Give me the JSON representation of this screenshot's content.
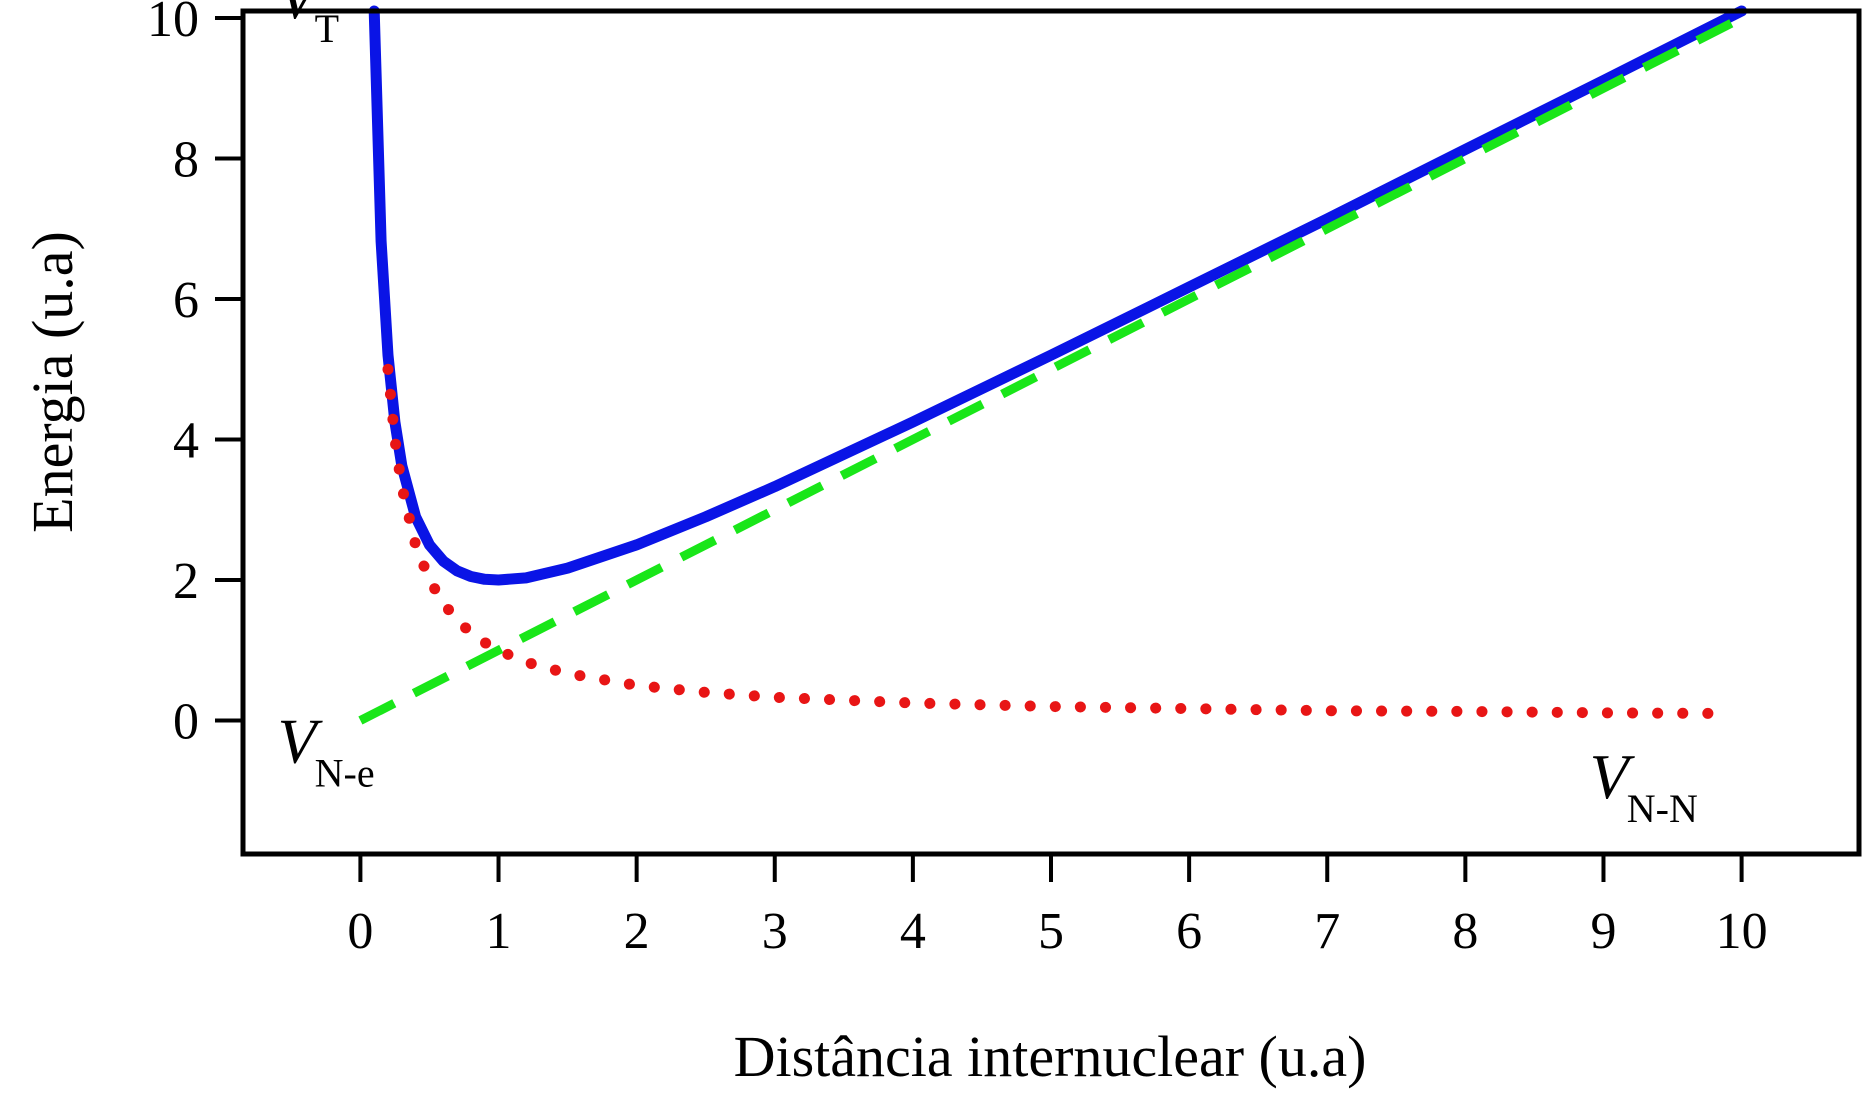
{
  "chart_data": {
    "type": "line",
    "title": "",
    "xlabel": "Distância internuclear (u.a)",
    "ylabel": "Energia (u.a)",
    "xlim": [
      -0.85,
      10.85
    ],
    "ylim": [
      -1.9,
      10.1
    ],
    "xticks": [
      0,
      1,
      2,
      3,
      4,
      5,
      6,
      7,
      8,
      9,
      10
    ],
    "yticks": [
      0,
      2,
      4,
      6,
      8,
      10
    ],
    "x_tick_labels": [
      "0",
      "1",
      "2",
      "3",
      "4",
      "5",
      "6",
      "7",
      "8",
      "9",
      "10"
    ],
    "y_tick_labels": [
      "0",
      "2",
      "4",
      "6",
      "8",
      "10"
    ],
    "grid": false,
    "legend": "none",
    "series": [
      {
        "style": "solid",
        "color": "#0a14e6",
        "x": [
          0.1,
          0.15,
          0.2,
          0.25,
          0.3,
          0.4,
          0.5,
          0.6,
          0.7,
          0.8,
          0.9,
          1.0,
          1.2,
          1.5,
          2.0,
          2.5,
          3.0,
          4.0,
          5.0,
          6.0,
          7.0,
          8.0,
          9.0,
          10.0
        ],
        "y": [
          10.1,
          6.82,
          5.2,
          4.25,
          3.63,
          2.9,
          2.5,
          2.27,
          2.13,
          2.05,
          2.01,
          2.0,
          2.03,
          2.17,
          2.5,
          2.9,
          3.33,
          4.25,
          5.2,
          6.17,
          7.14,
          8.13,
          9.11,
          10.1
        ]
      },
      {
        "style": "dotted",
        "color": "#e81515",
        "x": [
          0.2,
          0.25,
          0.3,
          0.4,
          0.5,
          0.6,
          0.7,
          0.8,
          0.9,
          1.0,
          1.2,
          1.5,
          2.0,
          2.5,
          3.0,
          4.0,
          5.0,
          6.0,
          7.0,
          8.0,
          9.0,
          9.9
        ],
        "y": [
          5.0,
          4.0,
          3.33,
          2.5,
          2.0,
          1.67,
          1.43,
          1.25,
          1.11,
          1.0,
          0.83,
          0.67,
          0.5,
          0.4,
          0.33,
          0.25,
          0.2,
          0.17,
          0.14,
          0.13,
          0.11,
          0.1
        ]
      },
      {
        "style": "dashed",
        "color": "#19e619",
        "x": [
          0.0,
          10.0
        ],
        "y": [
          0.0,
          10.0
        ]
      }
    ],
    "annotations": [
      {
        "text": "V",
        "sub": "T",
        "x": -0.6,
        "y": 10.0
      },
      {
        "text": "V",
        "sub": "N-e",
        "x": -0.6,
        "y": -0.6
      },
      {
        "text": "V",
        "sub": "N-N",
        "x": 8.9,
        "y": -1.1
      }
    ]
  }
}
